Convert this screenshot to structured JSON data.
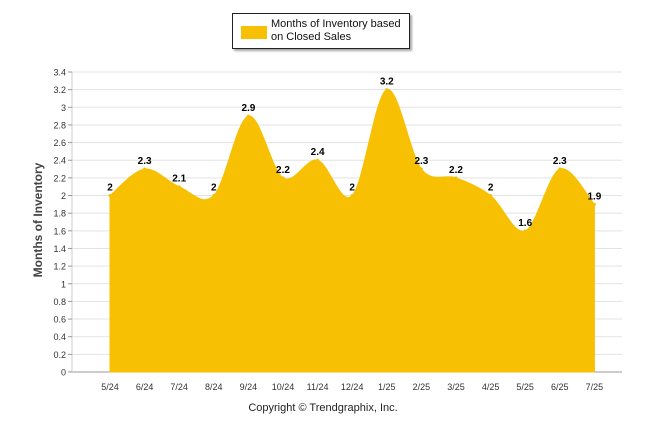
{
  "chart_data": {
    "type": "area",
    "categories": [
      "5/24",
      "6/24",
      "7/24",
      "8/24",
      "9/24",
      "10/24",
      "11/24",
      "12/24",
      "1/25",
      "2/25",
      "3/25",
      "4/25",
      "5/25",
      "6/25",
      "7/25"
    ],
    "series": [
      {
        "name": "Months of Inventory based on Closed Sales",
        "values": [
          2,
          2.3,
          2.1,
          2,
          2.9,
          2.2,
          2.4,
          2,
          3.2,
          2.3,
          2.2,
          2,
          1.6,
          2.3,
          1.9
        ]
      }
    ],
    "data_labels": [
      "2",
      "2.3",
      "2.1",
      "2",
      "2.9",
      "2.2",
      "2.4",
      "2",
      "3.2",
      "2.3",
      "2.2",
      "2",
      "1.6",
      "2.3",
      "1.9"
    ],
    "ylabel": "Months of Inventory",
    "xlabel": "",
    "ylim": [
      0,
      3.4
    ],
    "yticks": [
      "0",
      "0.2",
      "0.4",
      "0.6",
      "0.8",
      "1",
      "1.2",
      "1.4",
      "1.6",
      "1.8",
      "2",
      "2.2",
      "2.4",
      "2.6",
      "2.8",
      "3",
      "3.2",
      "3.4"
    ],
    "grid": true,
    "legend_position": "top-center",
    "color": "#F7C002"
  },
  "legend": {
    "label": "Months of Inventory based on Closed Sales"
  },
  "footer": {
    "copyright": "Copyright © Trendgraphix, Inc."
  }
}
